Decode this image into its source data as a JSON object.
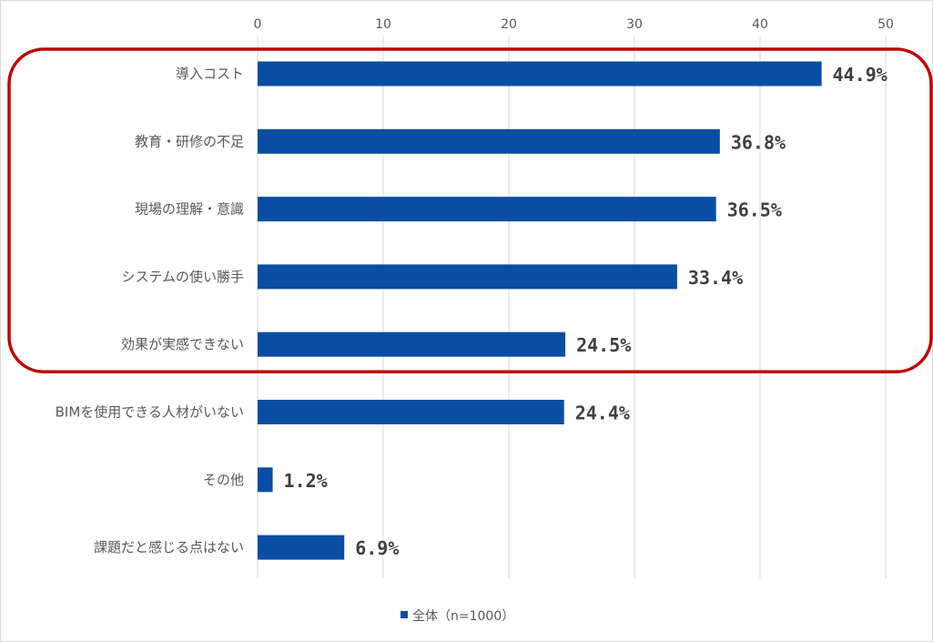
{
  "chart_data": {
    "type": "bar",
    "orientation": "horizontal",
    "categories": [
      "導入コスト",
      "教育・研修の不足",
      "現場の理解・意識",
      "システムの使い勝手",
      "効果が実感できない",
      "BIMを使用できる人材がいない",
      "その他",
      "課題だと感じる点はない"
    ],
    "series": [
      {
        "name": "全体（n=1000）",
        "values": [
          44.9,
          36.8,
          36.5,
          33.4,
          24.5,
          24.4,
          1.2,
          6.9
        ],
        "data_labels": [
          "44.9%",
          "36.8%",
          "36.5%",
          "33.4%",
          "24.5%",
          "24.4%",
          "1.2%",
          "6.9%"
        ]
      }
    ],
    "xlim": [
      0,
      50
    ],
    "x_ticks": [
      "0",
      "10",
      "20",
      "30",
      "40",
      "50"
    ],
    "xaxis_position": "top",
    "grid": true,
    "legend": "bottom",
    "highlight": {
      "shape": "rounded-rectangle",
      "color": "#c00000",
      "categories_from": 0,
      "categories_to": 4
    },
    "colors": {
      "bar": "#0a4ea3",
      "grid": "#d9d9d9",
      "highlight": "#c00000"
    }
  }
}
